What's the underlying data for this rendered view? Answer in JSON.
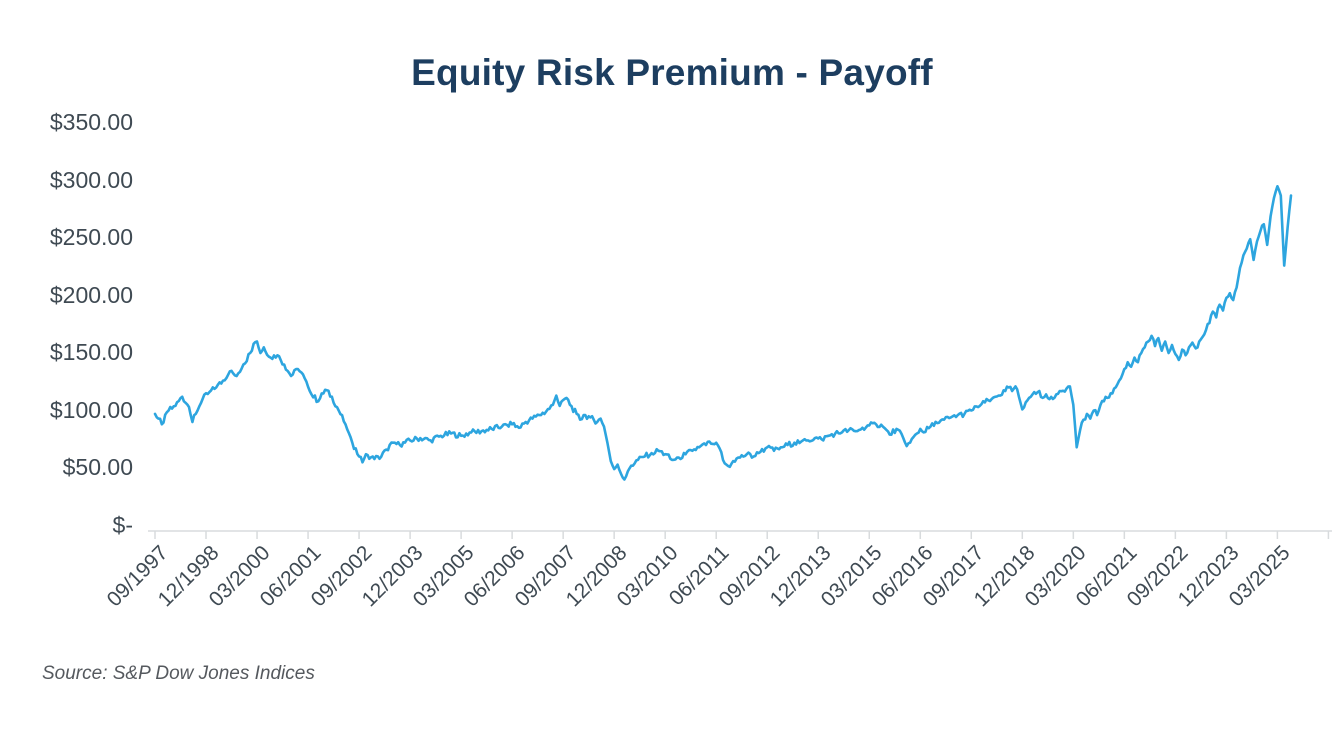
{
  "header": {
    "title": "Equity Risk Premium - Payoff"
  },
  "source_note": "Source: S&P Dow Jones Indices",
  "chart_data": {
    "type": "line",
    "title": "Equity Risk Premium - Payoff",
    "x_axis": {
      "tick_labels": [
        "09/1997",
        "12/1998",
        "03/2000",
        "06/2001",
        "09/2002",
        "12/2003",
        "03/2005",
        "06/2006",
        "09/2007",
        "12/2008",
        "03/2010",
        "06/2011",
        "09/2012",
        "12/2013",
        "03/2015",
        "06/2016",
        "09/2017",
        "12/2018",
        "03/2020",
        "06/2021",
        "09/2022",
        "12/2023",
        "03/2025"
      ],
      "tick_interval_months": 15,
      "start_label": "09/1997",
      "end_label": "03/2025"
    },
    "y_axis": {
      "tick_labels": [
        "$-",
        "$50.00",
        "$100.00",
        "$150.00",
        "$200.00",
        "$250.00",
        "$300.00",
        "$350.00"
      ],
      "tick_values": [
        0,
        50,
        100,
        150,
        200,
        250,
        300,
        350
      ],
      "range": [
        0,
        350
      ]
    },
    "grid": false,
    "legend": null,
    "style": {
      "line_color": "#2DA5DF",
      "axis_color": "#D8DBDD",
      "label_color": "#3F4A53",
      "title_color": "#1D3E60",
      "source_color": "#55595E",
      "jitter_amplitude": 2.4
    },
    "series": [
      {
        "name": "Equity Risk Premium Payoff ($)",
        "x_unit": "months since 09/1997",
        "points": [
          [
            0,
            97
          ],
          [
            1,
            93
          ],
          [
            2,
            88
          ],
          [
            4,
            100
          ],
          [
            6,
            104
          ],
          [
            8,
            112
          ],
          [
            10,
            103
          ],
          [
            11,
            90
          ],
          [
            12,
            97
          ],
          [
            14,
            110
          ],
          [
            16,
            116
          ],
          [
            18,
            120
          ],
          [
            20,
            126
          ],
          [
            22,
            134
          ],
          [
            24,
            130
          ],
          [
            26,
            140
          ],
          [
            28,
            150
          ],
          [
            29,
            158
          ],
          [
            30,
            160
          ],
          [
            31,
            150
          ],
          [
            32,
            155
          ],
          [
            34,
            146
          ],
          [
            36,
            148
          ],
          [
            38,
            140
          ],
          [
            40,
            130
          ],
          [
            42,
            136
          ],
          [
            44,
            128
          ],
          [
            46,
            114
          ],
          [
            48,
            108
          ],
          [
            50,
            118
          ],
          [
            52,
            112
          ],
          [
            54,
            100
          ],
          [
            56,
            88
          ],
          [
            58,
            72
          ],
          [
            60,
            60
          ],
          [
            61,
            55
          ],
          [
            62,
            62
          ],
          [
            63,
            58
          ],
          [
            64,
            60
          ],
          [
            66,
            58
          ],
          [
            68,
            66
          ],
          [
            70,
            72
          ],
          [
            72,
            70
          ],
          [
            75,
            74
          ],
          [
            78,
            76
          ],
          [
            81,
            74
          ],
          [
            84,
            78
          ],
          [
            87,
            80
          ],
          [
            90,
            78
          ],
          [
            93,
            81
          ],
          [
            96,
            82
          ],
          [
            99,
            84
          ],
          [
            102,
            86
          ],
          [
            105,
            88
          ],
          [
            107,
            85
          ],
          [
            109,
            90
          ],
          [
            111,
            93
          ],
          [
            113,
            96
          ],
          [
            115,
            99
          ],
          [
            117,
            105
          ],
          [
            118,
            113
          ],
          [
            119,
            104
          ],
          [
            120,
            109
          ],
          [
            121,
            111
          ],
          [
            122,
            105
          ],
          [
            124,
            97
          ],
          [
            125,
            92
          ],
          [
            126,
            96
          ],
          [
            128,
            94
          ],
          [
            130,
            90
          ],
          [
            131,
            93
          ],
          [
            132,
            86
          ],
          [
            133,
            72
          ],
          [
            134,
            56
          ],
          [
            135,
            49
          ],
          [
            136,
            53
          ],
          [
            137,
            45
          ],
          [
            138,
            40
          ],
          [
            139,
            47
          ],
          [
            140,
            52
          ],
          [
            142,
            57
          ],
          [
            144,
            60
          ],
          [
            146,
            63
          ],
          [
            148,
            65
          ],
          [
            150,
            62
          ],
          [
            152,
            57
          ],
          [
            154,
            59
          ],
          [
            156,
            62
          ],
          [
            158,
            65
          ],
          [
            160,
            68
          ],
          [
            162,
            70
          ],
          [
            163,
            73
          ],
          [
            164,
            71
          ],
          [
            165,
            72
          ],
          [
            166,
            67
          ],
          [
            167,
            57
          ],
          [
            168,
            53
          ],
          [
            169,
            51
          ],
          [
            170,
            56
          ],
          [
            172,
            59
          ],
          [
            174,
            62
          ],
          [
            176,
            60
          ],
          [
            178,
            64
          ],
          [
            180,
            68
          ],
          [
            182,
            65
          ],
          [
            184,
            68
          ],
          [
            186,
            70
          ],
          [
            188,
            72
          ],
          [
            190,
            73
          ],
          [
            192,
            74
          ],
          [
            194,
            76
          ],
          [
            196,
            75
          ],
          [
            198,
            78
          ],
          [
            200,
            80
          ],
          [
            202,
            81
          ],
          [
            204,
            83
          ],
          [
            206,
            82
          ],
          [
            208,
            85
          ],
          [
            210,
            87
          ],
          [
            212,
            88
          ],
          [
            214,
            86
          ],
          [
            216,
            79
          ],
          [
            218,
            84
          ],
          [
            220,
            76
          ],
          [
            221,
            69
          ],
          [
            222,
            72
          ],
          [
            224,
            80
          ],
          [
            225,
            84
          ],
          [
            226,
            81
          ],
          [
            228,
            86
          ],
          [
            230,
            89
          ],
          [
            232,
            92
          ],
          [
            234,
            94
          ],
          [
            236,
            96
          ],
          [
            238,
            97
          ],
          [
            240,
            100
          ],
          [
            242,
            103
          ],
          [
            244,
            107
          ],
          [
            246,
            110
          ],
          [
            248,
            113
          ],
          [
            250,
            117
          ],
          [
            251,
            120
          ],
          [
            252,
            117
          ],
          [
            253,
            121
          ],
          [
            254,
            112
          ],
          [
            255,
            101
          ],
          [
            256,
            107
          ],
          [
            257,
            111
          ],
          [
            258,
            114
          ],
          [
            260,
            117
          ],
          [
            261,
            111
          ],
          [
            262,
            114
          ],
          [
            264,
            110
          ],
          [
            266,
            117
          ],
          [
            268,
            119
          ],
          [
            269,
            121
          ],
          [
            270,
            105
          ],
          [
            271,
            68
          ],
          [
            272,
            83
          ],
          [
            273,
            92
          ],
          [
            274,
            97
          ],
          [
            275,
            93
          ],
          [
            276,
            100
          ],
          [
            277,
            96
          ],
          [
            278,
            105
          ],
          [
            279,
            108
          ],
          [
            280,
            111
          ],
          [
            281,
            115
          ],
          [
            282,
            119
          ],
          [
            283,
            123
          ],
          [
            284,
            128
          ],
          [
            285,
            136
          ],
          [
            286,
            142
          ],
          [
            287,
            138
          ],
          [
            288,
            146
          ],
          [
            289,
            142
          ],
          [
            290,
            150
          ],
          [
            291,
            155
          ],
          [
            292,
            160
          ],
          [
            293,
            165
          ],
          [
            294,
            156
          ],
          [
            295,
            163
          ],
          [
            296,
            152
          ],
          [
            297,
            160
          ],
          [
            298,
            150
          ],
          [
            299,
            157
          ],
          [
            300,
            149
          ],
          [
            301,
            144
          ],
          [
            302,
            153
          ],
          [
            303,
            148
          ],
          [
            304,
            155
          ],
          [
            305,
            159
          ],
          [
            306,
            154
          ],
          [
            307,
            160
          ],
          [
            308,
            164
          ],
          [
            309,
            170
          ],
          [
            310,
            176
          ],
          [
            311,
            186
          ],
          [
            312,
            181
          ],
          [
            313,
            192
          ],
          [
            314,
            187
          ],
          [
            315,
            198
          ],
          [
            316,
            202
          ],
          [
            317,
            196
          ],
          [
            318,
            207
          ],
          [
            319,
            224
          ],
          [
            320,
            235
          ],
          [
            321,
            241
          ],
          [
            322,
            249
          ],
          [
            323,
            231
          ],
          [
            324,
            247
          ],
          [
            325,
            256
          ],
          [
            326,
            262
          ],
          [
            327,
            244
          ],
          [
            328,
            269
          ],
          [
            329,
            285
          ],
          [
            330,
            295
          ],
          [
            331,
            287
          ],
          [
            332,
            226
          ],
          [
            333,
            259
          ],
          [
            334,
            287
          ]
        ]
      }
    ]
  }
}
